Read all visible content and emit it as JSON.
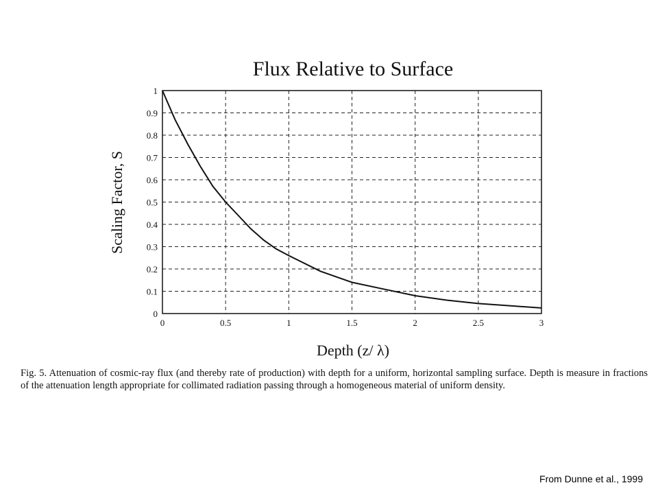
{
  "chart_data": {
    "type": "line",
    "title": "Flux Relative to Surface",
    "xlabel": "Depth (z/ λ)",
    "ylabel": "Scaling Factor, S",
    "xlim": [
      0,
      3
    ],
    "ylim": [
      0,
      1
    ],
    "x_ticks": [
      "0",
      "0.5",
      "1",
      "1.5",
      "2",
      "2.5",
      "3"
    ],
    "y_ticks": [
      "0",
      "0.1",
      "0.2",
      "0.3",
      "0.4",
      "0.5",
      "0.6",
      "0.7",
      "0.8",
      "0.9",
      "1"
    ],
    "grid": true,
    "legend": "none",
    "series": [
      {
        "x": [
          0,
          0.1,
          0.2,
          0.3,
          0.4,
          0.5,
          0.6,
          0.7,
          0.8,
          0.9,
          1.0,
          1.25,
          1.5,
          1.75,
          2.0,
          2.25,
          2.5,
          2.75,
          3.0
        ],
        "y": [
          1.0,
          0.87,
          0.76,
          0.66,
          0.57,
          0.5,
          0.44,
          0.38,
          0.33,
          0.29,
          0.26,
          0.19,
          0.14,
          0.11,
          0.08,
          0.06,
          0.045,
          0.035,
          0.025
        ]
      }
    ]
  },
  "caption": "Fig. 5. Attenuation of cosmic-ray flux (and thereby rate of production) with depth for a uniform, horizontal sampling surface. Depth is measure in fractions of the attenuation length appropriate for collimated radiation passing through a homogeneous material of uniform density.",
  "source": "From Dunne et al., 1999"
}
